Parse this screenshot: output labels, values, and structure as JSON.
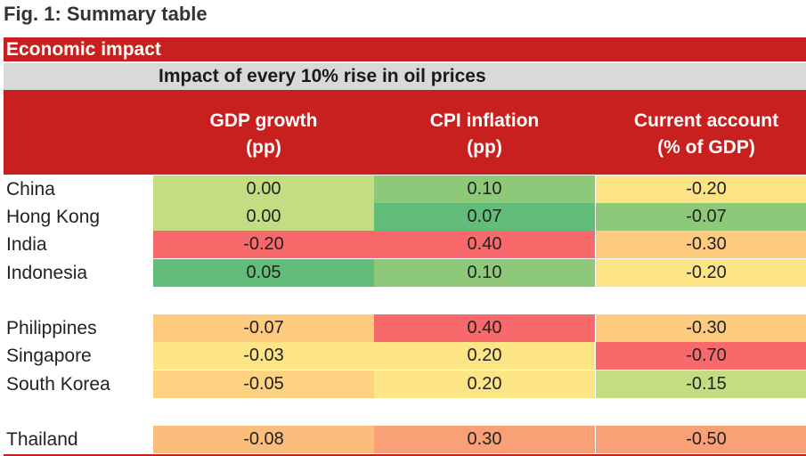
{
  "figure_title": "Fig. 1: Summary table",
  "section_title": "Economic impact",
  "subtitle": "Impact of every 10% rise in oil prices",
  "chart_data": {
    "type": "table",
    "title": "Impact of every 10% rise in oil prices",
    "columns": [
      {
        "line1": "GDP growth",
        "line2": "(pp)"
      },
      {
        "line1": "CPI inflation",
        "line2": "(pp)"
      },
      {
        "line1": "Current account",
        "line2": "(% of GDP)"
      }
    ],
    "rows": [
      {
        "country": "China",
        "values": [
          "0.00",
          "0.10",
          "-0.20"
        ]
      },
      {
        "country": "Hong Kong",
        "values": [
          "0.00",
          "0.07",
          "-0.07"
        ]
      },
      {
        "country": "India",
        "values": [
          "-0.20",
          "0.40",
          "-0.30"
        ]
      },
      {
        "country": "Indonesia",
        "values": [
          "0.05",
          "0.10",
          "-0.20"
        ]
      },
      {
        "country": "Philippines",
        "values": [
          "-0.07",
          "0.40",
          "-0.30"
        ]
      },
      {
        "country": "Singapore",
        "values": [
          "-0.03",
          "0.20",
          "-0.70"
        ]
      },
      {
        "country": "South Korea",
        "values": [
          "-0.05",
          "0.20",
          "-0.15"
        ]
      },
      {
        "country": "Thailand",
        "values": [
          "-0.08",
          "0.30",
          "-0.50"
        ]
      }
    ],
    "cell_colors": [
      [
        "#c5dd82",
        "#8ec97a",
        "#fde484"
      ],
      [
        "#c5dd82",
        "#63bd7a",
        "#8ec97a"
      ],
      [
        "#f8696b",
        "#f8696b",
        "#fdca7e"
      ],
      [
        "#63bd7a",
        "#8ec97a",
        "#fde484"
      ],
      [
        "#fdca7e",
        "#f8696b",
        "#fdca7e"
      ],
      [
        "#fde484",
        "#fde484",
        "#f8696b"
      ],
      [
        "#fdd280",
        "#fde484",
        "#c5dd82"
      ],
      [
        "#fbbd7c",
        "#f9a077",
        "#f9a077"
      ]
    ],
    "row_groups": [
      [
        0,
        1,
        2,
        3
      ],
      [
        4,
        5,
        6
      ],
      [
        7
      ]
    ]
  },
  "colors": {
    "header_red": "#c8201f",
    "subheader_grey": "#d9d9d9"
  }
}
